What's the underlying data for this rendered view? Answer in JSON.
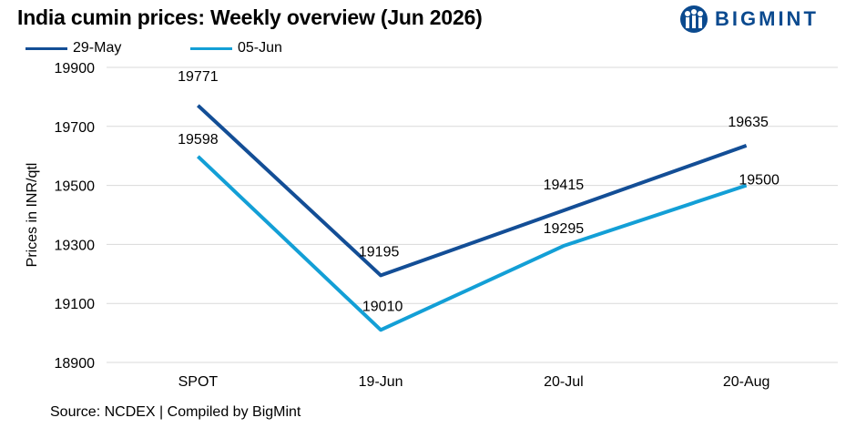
{
  "title": "India cumin prices: Weekly overview (Jun 2026)",
  "brand": {
    "name": "BIGMINT",
    "color": "#0b4a8f"
  },
  "source": "Source: NCDEX | Compiled by BigMint",
  "chart_data": {
    "type": "line",
    "categories": [
      "SPOT",
      "19-Jun",
      "20-Jul",
      "20-Aug"
    ],
    "series": [
      {
        "name": "29-May",
        "color": "#134e96",
        "values": [
          19771,
          19195,
          19415,
          19635
        ]
      },
      {
        "name": "05-Jun",
        "color": "#139fd6",
        "values": [
          19598,
          19010,
          19295,
          19500
        ]
      }
    ],
    "ylabel": "Prices in INR/qtl",
    "xlabel": "",
    "ylim": [
      18900,
      19900
    ],
    "yticks": [
      18900,
      19100,
      19300,
      19500,
      19700,
      19900
    ],
    "grid": true,
    "legend": "top-left"
  }
}
